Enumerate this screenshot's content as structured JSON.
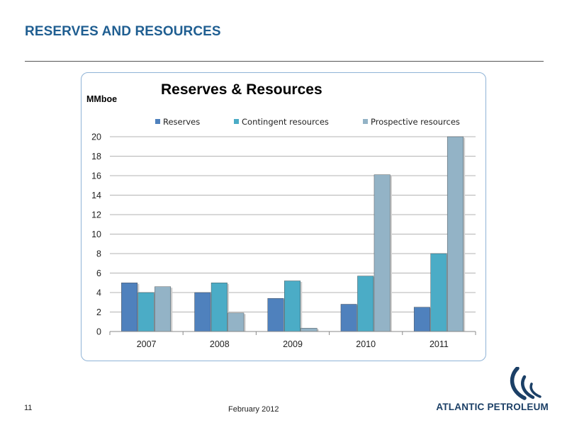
{
  "slide": {
    "title": "RESERVES AND RESOURCES",
    "page_number": "11",
    "date": "February 2012",
    "brand": "ATLANTIC PETROLEUM",
    "title_color": "#1f5e91",
    "logo_icon": "atlantic-petroleum-wave-icon"
  },
  "chart_data": {
    "type": "bar",
    "title": "Reserves & Resources",
    "ylabel": "MMboe",
    "xlabel": "",
    "categories": [
      "2007",
      "2008",
      "2009",
      "2010",
      "2011"
    ],
    "series": [
      {
        "name": "Reserves",
        "values": [
          5.0,
          4.0,
          3.4,
          2.8,
          2.5
        ],
        "color": "#4f81bd"
      },
      {
        "name": "Contingent resources",
        "values": [
          4.0,
          5.0,
          5.2,
          5.7,
          8.0
        ],
        "color": "#4bacc6"
      },
      {
        "name": "Prospective resources",
        "values": [
          4.6,
          1.9,
          0.35,
          16.1,
          20.0
        ],
        "color": "#93b3c6"
      }
    ],
    "ylim": [
      0,
      20
    ],
    "yticks": [
      "0",
      "2",
      "4",
      "6",
      "8",
      "10",
      "12",
      "14",
      "16",
      "18",
      "20"
    ],
    "grid": true,
    "legend_position": "top"
  }
}
